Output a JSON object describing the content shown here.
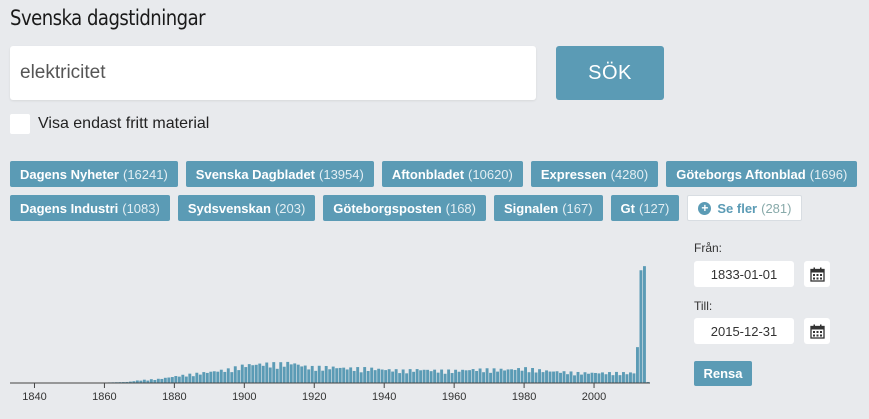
{
  "header": {
    "title": "Svenska dagstidningar"
  },
  "search": {
    "value": "elektricitet",
    "button_label": "SÖK"
  },
  "free_filter": {
    "label": "Visa endast fritt material",
    "checked": false
  },
  "newspapers": [
    {
      "name": "Dagens Nyheter",
      "count": "(16241)"
    },
    {
      "name": "Svenska Dagbladet",
      "count": "(13954)"
    },
    {
      "name": "Aftonbladet",
      "count": "(10620)"
    },
    {
      "name": "Expressen",
      "count": "(4280)"
    },
    {
      "name": "Göteborgs Aftonblad",
      "count": "(1696)"
    },
    {
      "name": "Dagens Industri",
      "count": "(1083)"
    },
    {
      "name": "Sydsvenskan",
      "count": "(203)"
    },
    {
      "name": "Göteborgsposten",
      "count": "(168)"
    },
    {
      "name": "Signalen",
      "count": "(167)"
    },
    {
      "name": "Gt",
      "count": "(127)"
    }
  ],
  "more": {
    "label": "Se fler",
    "count": "(281)"
  },
  "date_range": {
    "from_label": "Från:",
    "from_value": "1833-01-01",
    "to_label": "Till:",
    "to_value": "2015-12-31",
    "clear_label": "Rensa"
  },
  "colors": {
    "accent": "#5b9bb5",
    "background": "#e8eaed"
  },
  "chart_data": {
    "type": "bar",
    "x_ticks": [
      "1840",
      "1860",
      "1880",
      "1900",
      "1920",
      "1940",
      "1960",
      "1980",
      "2000"
    ],
    "xlim": [
      1833,
      2015
    ],
    "anchors": [
      [
        1833,
        0.2
      ],
      [
        1860,
        0.5
      ],
      [
        1866,
        1
      ],
      [
        1870,
        2.5
      ],
      [
        1875,
        3.5
      ],
      [
        1880,
        6
      ],
      [
        1885,
        8
      ],
      [
        1890,
        10
      ],
      [
        1895,
        12
      ],
      [
        1900,
        16
      ],
      [
        1905,
        17
      ],
      [
        1910,
        17
      ],
      [
        1913,
        18
      ],
      [
        1918,
        14
      ],
      [
        1925,
        14
      ],
      [
        1930,
        13
      ],
      [
        1935,
        13
      ],
      [
        1940,
        12
      ],
      [
        1945,
        11
      ],
      [
        1950,
        12
      ],
      [
        1955,
        11
      ],
      [
        1960,
        11
      ],
      [
        1965,
        12
      ],
      [
        1970,
        12
      ],
      [
        1975,
        12
      ],
      [
        1980,
        13
      ],
      [
        1985,
        11
      ],
      [
        1990,
        10
      ],
      [
        1995,
        9
      ],
      [
        2000,
        9
      ],
      [
        2005,
        9
      ],
      [
        2010,
        9
      ],
      [
        2011,
        9
      ],
      [
        2012,
        35
      ],
      [
        2013,
        110
      ],
      [
        2014,
        114
      ],
      [
        2015,
        1
      ]
    ],
    "values_note": "",
    "ylim": [
      0,
      120
    ]
  }
}
